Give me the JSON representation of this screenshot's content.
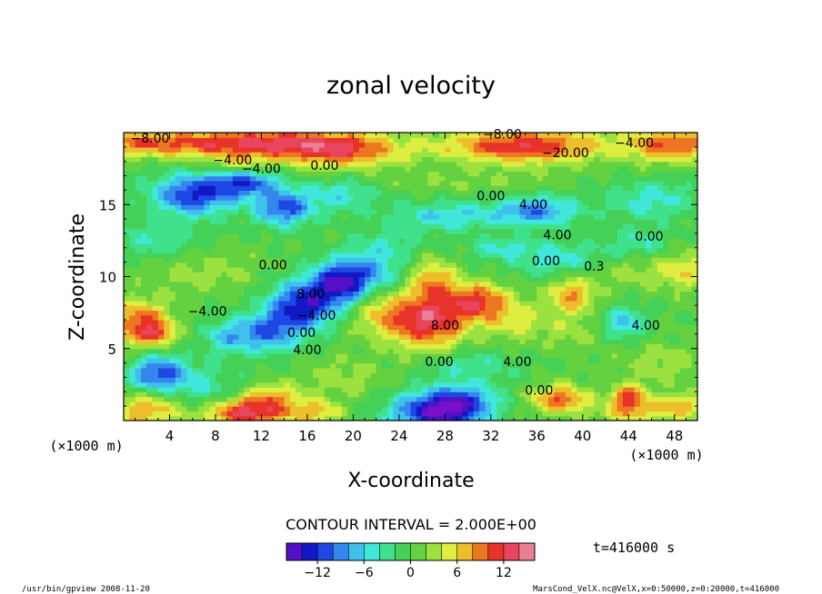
{
  "chart_data": {
    "type": "heatmap",
    "title": "zonal velocity",
    "xlabel": "X-coordinate",
    "ylabel": "Z-coordinate",
    "x_unit": "(×1000 m)",
    "y_unit": "(×1000 m)",
    "xlim": [
      0,
      50
    ],
    "ylim": [
      0,
      20
    ],
    "x_ticks": [
      4,
      8,
      12,
      16,
      20,
      24,
      28,
      32,
      36,
      40,
      44,
      48
    ],
    "y_ticks": [
      5,
      10,
      15
    ],
    "contour_interval_text": "CONTOUR INTERVAL = 2.000E+00",
    "time_text": "t=416000 s",
    "colorbar": {
      "range": [
        -16,
        16
      ],
      "ticks": [
        -12,
        -6,
        0,
        6,
        12
      ],
      "tick_labels": [
        "−12",
        "−6",
        "0",
        "6",
        "12"
      ],
      "colors": [
        "#7b10c8",
        "#1010c0",
        "#2050e8",
        "#3fa8f0",
        "#40e8e8",
        "#40e080",
        "#48c840",
        "#90e040",
        "#e8f040",
        "#f0a020",
        "#e83020",
        "#e84868",
        "#f0a0b0"
      ]
    },
    "contour_labels": [
      {
        "text": "−8.00",
        "x": 2.3,
        "y": 19.3
      },
      {
        "text": "−8.00",
        "x": 33.0,
        "y": 19.6
      },
      {
        "text": "−4.00",
        "x": 44.5,
        "y": 19.0
      },
      {
        "text": "−4.00",
        "x": 9.5,
        "y": 17.8
      },
      {
        "text": "−4.00",
        "x": 12.0,
        "y": 17.2
      },
      {
        "text": "0.00",
        "x": 17.5,
        "y": 17.4
      },
      {
        "text": "−20.00",
        "x": 38.5,
        "y": 18.3
      },
      {
        "text": "0.00",
        "x": 32.0,
        "y": 15.3
      },
      {
        "text": "4.00",
        "x": 35.7,
        "y": 14.7
      },
      {
        "text": "4.00",
        "x": 37.8,
        "y": 12.6
      },
      {
        "text": "0.00",
        "x": 45.8,
        "y": 12.5
      },
      {
        "text": "0.00",
        "x": 13.0,
        "y": 10.5
      },
      {
        "text": "0.00",
        "x": 36.8,
        "y": 10.8
      },
      {
        "text": "0.3",
        "x": 41.0,
        "y": 10.4
      },
      {
        "text": "8.00",
        "x": 16.3,
        "y": 8.5
      },
      {
        "text": "−4.00",
        "x": 7.3,
        "y": 7.3
      },
      {
        "text": "−4.00",
        "x": 16.8,
        "y": 7.0
      },
      {
        "text": "0.00",
        "x": 15.5,
        "y": 5.8
      },
      {
        "text": "8.00",
        "x": 28.0,
        "y": 6.3
      },
      {
        "text": "4.00",
        "x": 45.5,
        "y": 6.3
      },
      {
        "text": "4.00",
        "x": 16.0,
        "y": 4.6
      },
      {
        "text": "0.00",
        "x": 27.5,
        "y": 3.8
      },
      {
        "text": "4.00",
        "x": 34.3,
        "y": 3.8
      },
      {
        "text": "0.00",
        "x": 36.2,
        "y": 1.8
      }
    ],
    "blobs": [
      {
        "x": 0.5,
        "z": 19.3,
        "sx": 6,
        "sy": 0.9,
        "v": 7
      },
      {
        "x": 12,
        "z": 19.3,
        "sx": 9,
        "sy": 1.0,
        "v": 12
      },
      {
        "x": 19,
        "z": 18.6,
        "sx": 5,
        "sy": 1.2,
        "v": 8
      },
      {
        "x": 35,
        "z": 19.1,
        "sx": 7,
        "sy": 1.2,
        "v": 12
      },
      {
        "x": 48,
        "z": 19.2,
        "sx": 4,
        "sy": 1.2,
        "v": 10
      },
      {
        "x": 10,
        "z": 17.8,
        "sx": 3,
        "sy": 0.8,
        "v": 5
      },
      {
        "x": 6,
        "z": 15.7,
        "sx": 3.5,
        "sy": 1.4,
        "v": -12
      },
      {
        "x": 10.5,
        "z": 16.6,
        "sx": 3,
        "sy": 1.0,
        "v": -11
      },
      {
        "x": 14,
        "z": 14.8,
        "sx": 2.5,
        "sy": 1.2,
        "v": -11
      },
      {
        "x": 19,
        "z": 15.8,
        "sx": 3,
        "sy": 1.2,
        "v": -5
      },
      {
        "x": 28,
        "z": 14.2,
        "sx": 5,
        "sy": 1.0,
        "v": -6
      },
      {
        "x": 36,
        "z": 14.6,
        "sx": 3.5,
        "sy": 1.0,
        "v": -9
      },
      {
        "x": 46,
        "z": 15.4,
        "sx": 4,
        "sy": 1.3,
        "v": -5
      },
      {
        "x": 30,
        "z": 16.6,
        "sx": 8,
        "sy": 0.7,
        "v": 2
      },
      {
        "x": 3,
        "z": 12.5,
        "sx": 4,
        "sy": 1.3,
        "v": -4
      },
      {
        "x": 7,
        "z": 10.5,
        "sx": 5,
        "sy": 1.6,
        "v": 3
      },
      {
        "x": 38,
        "z": 11.2,
        "sx": 4,
        "sy": 1.2,
        "v": -5
      },
      {
        "x": 45,
        "z": 12.4,
        "sx": 3,
        "sy": 1.0,
        "v": -4
      },
      {
        "x": 44,
        "z": 10.3,
        "sx": 4,
        "sy": 1.2,
        "v": 3
      },
      {
        "x": 49,
        "z": 10.5,
        "sx": 2.5,
        "sy": 1.5,
        "v": 5
      },
      {
        "x": 19,
        "z": 9.6,
        "sx": 2.5,
        "sy": 1.6,
        "v": -14
      },
      {
        "x": 15.5,
        "z": 8.0,
        "sx": 2.7,
        "sy": 1.7,
        "v": -13
      },
      {
        "x": 12.5,
        "z": 6.2,
        "sx": 2.5,
        "sy": 1.4,
        "v": -9
      },
      {
        "x": 9,
        "z": 5.8,
        "sx": 2.2,
        "sy": 1.2,
        "v": -6
      },
      {
        "x": 22,
        "z": 10.5,
        "sx": 2.5,
        "sy": 1.4,
        "v": -6
      },
      {
        "x": 1.5,
        "z": 6.7,
        "sx": 2.7,
        "sy": 1.6,
        "v": 11
      },
      {
        "x": 3,
        "z": 6.0,
        "sx": 1.2,
        "sy": 0.6,
        "v": 6
      },
      {
        "x": 3,
        "z": 3.3,
        "sx": 2.5,
        "sy": 1.3,
        "v": -11
      },
      {
        "x": 7,
        "z": 2.2,
        "sx": 3,
        "sy": 1.6,
        "v": -4
      },
      {
        "x": 2,
        "z": 0.8,
        "sx": 3,
        "sy": 1.2,
        "v": 8
      },
      {
        "x": 11,
        "z": 0.6,
        "sx": 4,
        "sy": 1.0,
        "v": 13
      },
      {
        "x": 13,
        "z": 1.8,
        "sx": 2.5,
        "sy": 0.8,
        "v": 6
      },
      {
        "x": 17,
        "z": 0.6,
        "sx": 2,
        "sy": 0.8,
        "v": 6
      },
      {
        "x": 26.5,
        "z": 7.0,
        "sx": 3.5,
        "sy": 2.0,
        "v": 13
      },
      {
        "x": 31,
        "z": 8.3,
        "sx": 2.5,
        "sy": 1.3,
        "v": 10
      },
      {
        "x": 27,
        "z": 9.8,
        "sx": 2.0,
        "sy": 1.4,
        "v": 7
      },
      {
        "x": 22,
        "z": 7.5,
        "sx": 2.5,
        "sy": 1.5,
        "v": 5
      },
      {
        "x": 34,
        "z": 7.0,
        "sx": 2.5,
        "sy": 1.5,
        "v": 4
      },
      {
        "x": 39,
        "z": 8.8,
        "sx": 2.0,
        "sy": 1.2,
        "v": 8
      },
      {
        "x": 39,
        "z": 6.5,
        "sx": 3.5,
        "sy": 1.4,
        "v": 3
      },
      {
        "x": 43.5,
        "z": 6.8,
        "sx": 2.0,
        "sy": 1.1,
        "v": -7
      },
      {
        "x": 47,
        "z": 4.0,
        "sx": 4,
        "sy": 1.5,
        "v": 3
      },
      {
        "x": 30,
        "z": 3.8,
        "sx": 4,
        "sy": 1.3,
        "v": -4
      },
      {
        "x": 27.5,
        "z": 0.6,
        "sx": 4,
        "sy": 1.3,
        "v": -16
      },
      {
        "x": 29.5,
        "z": 1.6,
        "sx": 3,
        "sy": 1.0,
        "v": -6
      },
      {
        "x": 38,
        "z": 1.5,
        "sx": 2.5,
        "sy": 1.0,
        "v": 10
      },
      {
        "x": 44,
        "z": 1.6,
        "sx": 1.5,
        "sy": 0.9,
        "v": 11
      },
      {
        "x": 44,
        "z": 0.5,
        "sx": 3,
        "sy": 0.8,
        "v": 5
      },
      {
        "x": 48.5,
        "z": 1.0,
        "sx": 2.5,
        "sy": 0.9,
        "v": 7
      },
      {
        "x": 19,
        "z": 3.0,
        "sx": 4,
        "sy": 1.5,
        "v": 3
      },
      {
        "x": 23,
        "z": 12.3,
        "sx": 3,
        "sy": 0.9,
        "v": -3
      },
      {
        "x": 33,
        "z": 12.0,
        "sx": 3,
        "sy": 0.8,
        "v": -4
      }
    ]
  },
  "footer": {
    "program": "/usr/bin/gpview  2008-11-20",
    "source": "MarsCond_VelX.nc@VelX,x=0:50000,z=0:20000,t=416000"
  }
}
